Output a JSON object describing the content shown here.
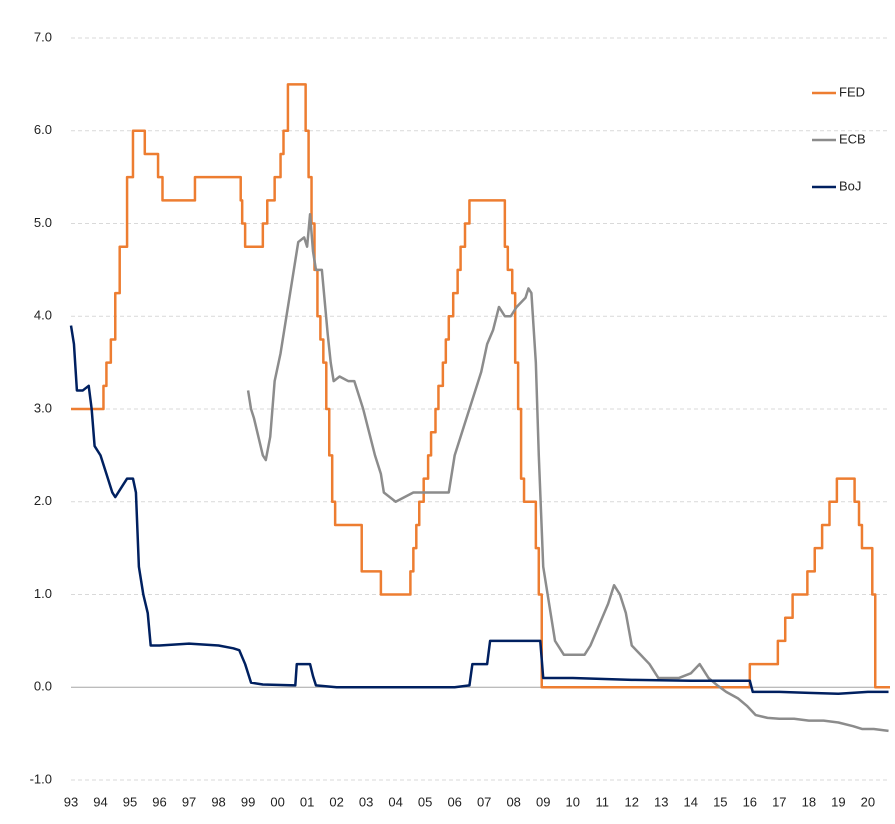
{
  "chart_data": {
    "type": "line",
    "xlim": [
      1993,
      2020.75
    ],
    "xticks": [
      {
        "value": 1993,
        "label": "93"
      },
      {
        "value": 1994,
        "label": "94"
      },
      {
        "value": 1995,
        "label": "95"
      },
      {
        "value": 1996,
        "label": "96"
      },
      {
        "value": 1997,
        "label": "97"
      },
      {
        "value": 1998,
        "label": "98"
      },
      {
        "value": 1999,
        "label": "99"
      },
      {
        "value": 2000,
        "label": "00"
      },
      {
        "value": 2001,
        "label": "01"
      },
      {
        "value": 2002,
        "label": "02"
      },
      {
        "value": 2003,
        "label": "03"
      },
      {
        "value": 2004,
        "label": "04"
      },
      {
        "value": 2005,
        "label": "05"
      },
      {
        "value": 2006,
        "label": "06"
      },
      {
        "value": 2007,
        "label": "07"
      },
      {
        "value": 2008,
        "label": "08"
      },
      {
        "value": 2009,
        "label": "09"
      },
      {
        "value": 2010,
        "label": "10"
      },
      {
        "value": 2011,
        "label": "11"
      },
      {
        "value": 2012,
        "label": "12"
      },
      {
        "value": 2013,
        "label": "13"
      },
      {
        "value": 2014,
        "label": "14"
      },
      {
        "value": 2015,
        "label": "15"
      },
      {
        "value": 2016,
        "label": "16"
      },
      {
        "value": 2017,
        "label": "17"
      },
      {
        "value": 2018,
        "label": "18"
      },
      {
        "value": 2019,
        "label": "19"
      },
      {
        "value": 2020,
        "label": "20"
      }
    ],
    "ylim": [
      -1,
      7
    ],
    "yticks": [
      {
        "value": -1,
        "label": "-1.0"
      },
      {
        "value": 0,
        "label": "0.0"
      },
      {
        "value": 1,
        "label": "1.0"
      },
      {
        "value": 2,
        "label": "2.0"
      },
      {
        "value": 3,
        "label": "3.0"
      },
      {
        "value": 4,
        "label": "4.0"
      },
      {
        "value": 5,
        "label": "5.0"
      },
      {
        "value": 6,
        "label": "6.0"
      },
      {
        "value": 7,
        "label": "7.0"
      }
    ],
    "grid": true,
    "legend": "right",
    "series": [
      {
        "name": "FED",
        "color": "#ed7d31",
        "step": true,
        "x": [
          1993.0,
          1994.1,
          1994.2,
          1994.35,
          1994.5,
          1994.65,
          1994.9,
          1995.1,
          1995.5,
          1995.95,
          1996.1,
          1997.2,
          1998.75,
          1998.8,
          1998.9,
          1999.5,
          1999.65,
          1999.9,
          2000.1,
          2000.2,
          2000.35,
          2000.95,
          2001.05,
          2001.15,
          2001.25,
          2001.35,
          2001.45,
          2001.55,
          2001.65,
          2001.75,
          2001.85,
          2001.95,
          2002.85,
          2003.5,
          2004.5,
          2004.6,
          2004.7,
          2004.8,
          2004.95,
          2005.1,
          2005.2,
          2005.35,
          2005.45,
          2005.6,
          2005.7,
          2005.8,
          2005.95,
          2006.1,
          2006.2,
          2006.35,
          2006.5,
          2007.7,
          2007.8,
          2007.95,
          2008.05,
          2008.15,
          2008.25,
          2008.35,
          2008.75,
          2008.85,
          2008.95,
          2016.0,
          2016.95,
          2017.2,
          2017.45,
          2017.95,
          2018.2,
          2018.45,
          2018.7,
          2018.95,
          2019.55,
          2019.7,
          2019.8,
          2020.15,
          2020.25,
          2020.75
        ],
        "values": [
          3.0,
          3.25,
          3.5,
          3.75,
          4.25,
          4.75,
          5.5,
          6.0,
          5.75,
          5.5,
          5.25,
          5.5,
          5.25,
          5.0,
          4.75,
          5.0,
          5.25,
          5.5,
          5.75,
          6.0,
          6.5,
          6.0,
          5.5,
          5.0,
          4.5,
          4.0,
          3.75,
          3.5,
          3.0,
          2.5,
          2.0,
          1.75,
          1.25,
          1.0,
          1.25,
          1.5,
          1.75,
          2.0,
          2.25,
          2.5,
          2.75,
          3.0,
          3.25,
          3.5,
          3.75,
          4.0,
          4.25,
          4.5,
          4.75,
          5.0,
          5.25,
          4.75,
          4.5,
          4.25,
          3.5,
          3.0,
          2.25,
          2.0,
          1.5,
          1.0,
          0.0,
          0.25,
          0.5,
          0.75,
          1.0,
          1.25,
          1.5,
          1.75,
          2.0,
          2.25,
          2.0,
          1.75,
          1.5,
          1.0,
          0.0,
          0.0
        ]
      },
      {
        "name": "ECB",
        "color": "#8c8c8c",
        "step": false,
        "x": [
          1999.0,
          1999.1,
          1999.2,
          1999.35,
          1999.5,
          1999.6,
          1999.75,
          1999.9,
          2000.1,
          2000.3,
          2000.5,
          2000.7,
          2000.9,
          2001.0,
          2001.1,
          2001.2,
          2001.3,
          2001.5,
          2001.7,
          2001.8,
          2001.9,
          2002.1,
          2002.4,
          2002.6,
          2002.9,
          2003.1,
          2003.3,
          2003.5,
          2003.6,
          2003.8,
          2004.0,
          2004.3,
          2004.6,
          2005.0,
          2005.5,
          2005.8,
          2006.0,
          2006.3,
          2006.6,
          2006.9,
          2007.1,
          2007.3,
          2007.5,
          2007.7,
          2007.9,
          2008.1,
          2008.4,
          2008.5,
          2008.6,
          2008.75,
          2008.85,
          2009.0,
          2009.2,
          2009.4,
          2009.7,
          2010.0,
          2010.4,
          2010.6,
          2010.8,
          2011.0,
          2011.2,
          2011.4,
          2011.6,
          2011.8,
          2012.0,
          2012.3,
          2012.6,
          2012.9,
          2013.2,
          2013.6,
          2014.0,
          2014.3,
          2014.6,
          2014.9,
          2015.2,
          2015.6,
          2015.9,
          2016.2,
          2016.6,
          2017.0,
          2017.5,
          2018.0,
          2018.5,
          2019.0,
          2019.5,
          2019.8,
          2020.2,
          2020.7
        ],
        "values": [
          3.2,
          3.0,
          2.9,
          2.7,
          2.5,
          2.45,
          2.7,
          3.3,
          3.6,
          4.0,
          4.4,
          4.8,
          4.85,
          4.75,
          5.1,
          4.7,
          4.5,
          4.5,
          3.8,
          3.5,
          3.3,
          3.35,
          3.3,
          3.3,
          3.0,
          2.75,
          2.5,
          2.3,
          2.1,
          2.05,
          2.0,
          2.05,
          2.1,
          2.1,
          2.1,
          2.1,
          2.5,
          2.8,
          3.1,
          3.4,
          3.7,
          3.85,
          4.1,
          4.0,
          4.0,
          4.1,
          4.2,
          4.3,
          4.25,
          3.5,
          2.5,
          1.3,
          0.9,
          0.5,
          0.35,
          0.35,
          0.35,
          0.45,
          0.6,
          0.75,
          0.9,
          1.1,
          1.0,
          0.8,
          0.45,
          0.35,
          0.25,
          0.1,
          0.1,
          0.1,
          0.15,
          0.25,
          0.1,
          0.02,
          -0.05,
          -0.12,
          -0.2,
          -0.3,
          -0.33,
          -0.34,
          -0.34,
          -0.36,
          -0.36,
          -0.38,
          -0.42,
          -0.45,
          -0.45,
          -0.47
        ]
      },
      {
        "name": "BoJ",
        "color": "#002060",
        "step": false,
        "x": [
          1993.0,
          1993.1,
          1993.2,
          1993.4,
          1993.6,
          1993.7,
          1993.8,
          1994.0,
          1994.2,
          1994.4,
          1994.5,
          1994.7,
          1994.9,
          1995.1,
          1995.2,
          1995.3,
          1995.45,
          1995.6,
          1995.7,
          1996.0,
          1997.0,
          1998.0,
          1998.5,
          1998.7,
          1998.9,
          1999.1,
          1999.5,
          2000.6,
          2000.65,
          2001.1,
          2001.2,
          2001.3,
          2002.0,
          2006.0,
          2006.5,
          2006.6,
          2007.1,
          2007.2,
          2008.0,
          2008.9,
          2009.0,
          2010.0,
          2012.0,
          2014.0,
          2016.0,
          2016.1,
          2017.0,
          2018.0,
          2019.0,
          2020.0,
          2020.7
        ],
        "values": [
          3.9,
          3.7,
          3.2,
          3.2,
          3.25,
          3.0,
          2.6,
          2.5,
          2.3,
          2.1,
          2.05,
          2.15,
          2.25,
          2.25,
          2.1,
          1.3,
          1.0,
          0.8,
          0.45,
          0.45,
          0.47,
          0.45,
          0.42,
          0.4,
          0.25,
          0.05,
          0.03,
          0.02,
          0.25,
          0.25,
          0.12,
          0.02,
          0.0,
          0.0,
          0.02,
          0.25,
          0.25,
          0.5,
          0.5,
          0.5,
          0.1,
          0.1,
          0.08,
          0.07,
          0.07,
          -0.05,
          -0.05,
          -0.06,
          -0.07,
          -0.05,
          -0.05
        ]
      }
    ]
  }
}
